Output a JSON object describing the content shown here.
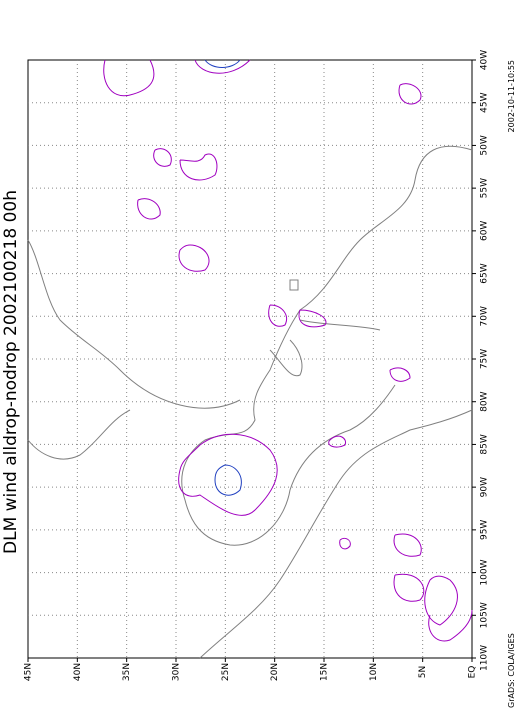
{
  "title": "DLM wind alldrop-nodrop 2002100218 00h",
  "timestamp": "2002-10-11-10:55",
  "credit": "GrADS: COLA/IGES",
  "map": {
    "lon_labels": [
      "40W",
      "45W",
      "50W",
      "55W",
      "60W",
      "65W",
      "70W",
      "75W",
      "80W",
      "85W",
      "90W",
      "95W",
      "100W",
      "105W",
      "110W"
    ],
    "lat_labels": [
      "45N",
      "40N",
      "35N",
      "30N",
      "25N",
      "20N",
      "15N",
      "10N",
      "5N",
      "EQ"
    ]
  }
}
